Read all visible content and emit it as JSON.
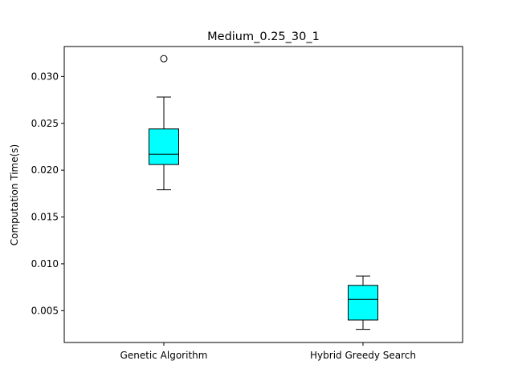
{
  "chart_data": {
    "type": "box",
    "title": "Medium_0.25_30_1",
    "xlabel": "",
    "ylabel": "Computation Time(s)",
    "ylim": [
      0.0016,
      0.0332
    ],
    "yticks": [
      0.005,
      0.01,
      0.015,
      0.02,
      0.025,
      0.03
    ],
    "ytick_labels": [
      "0.005",
      "0.010",
      "0.015",
      "0.020",
      "0.025",
      "0.030"
    ],
    "categories": [
      "Genetic Algorithm",
      "Hybrid Greedy Search"
    ],
    "boxes": [
      {
        "name": "Genetic Algorithm",
        "whisker_low": 0.0179,
        "q1": 0.0206,
        "median": 0.0217,
        "q3": 0.0244,
        "whisker_high": 0.0278,
        "outliers": [
          0.0319
        ]
      },
      {
        "name": "Hybrid Greedy Search",
        "whisker_low": 0.003,
        "q1": 0.004,
        "median": 0.0062,
        "q3": 0.0077,
        "whisker_high": 0.0087,
        "outliers": []
      }
    ],
    "box_color": "#00ffff",
    "edge_color": "#000000",
    "grid": false
  }
}
